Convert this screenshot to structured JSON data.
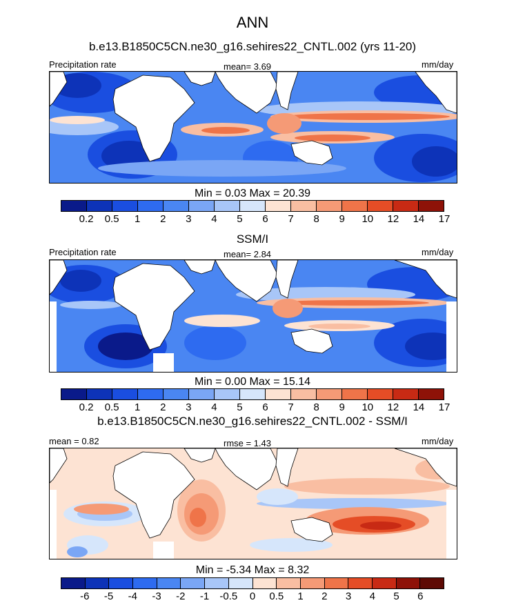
{
  "chart_data": [
    {
      "type": "heatmap",
      "title": "ANN",
      "subtitle": "b.e13.B1850C5CN.ne30_g16.sehires22_CNTL.002 (yrs 11-20)",
      "left_label": "Precipitation rate",
      "center_label": "mean=  3.69",
      "right_label": "mm/day",
      "stats": "Min =   0.03 Max =  20.39",
      "colorbar": {
        "ticks": [
          "0.2",
          "0.5",
          "1",
          "2",
          "3",
          "4",
          "5",
          "6",
          "7",
          "8",
          "9",
          "10",
          "12",
          "14",
          "17"
        ],
        "colors": [
          "#0a1a8a",
          "#0d33b8",
          "#1a4ee0",
          "#2e6bf0",
          "#4a86f2",
          "#7aa6f5",
          "#a8c6f8",
          "#d6e6fb",
          "#fde3d3",
          "#f9bea2",
          "#f59a76",
          "#ef7449",
          "#e54d26",
          "#c82a14",
          "#8e1208"
        ]
      }
    },
    {
      "type": "heatmap",
      "subtitle": "SSM/I",
      "left_label": "Precipitation rate",
      "center_label": "mean=  2.84",
      "right_label": "mm/day",
      "stats": "Min =   0.00 Max =  15.14",
      "colorbar": {
        "ticks": [
          "0.2",
          "0.5",
          "1",
          "2",
          "3",
          "4",
          "5",
          "6",
          "7",
          "8",
          "9",
          "10",
          "12",
          "14",
          "17"
        ],
        "colors": [
          "#0a1a8a",
          "#0d33b8",
          "#1a4ee0",
          "#2e6bf0",
          "#4a86f2",
          "#7aa6f5",
          "#a8c6f8",
          "#d6e6fb",
          "#fde3d3",
          "#f9bea2",
          "#f59a76",
          "#ef7449",
          "#e54d26",
          "#c82a14",
          "#8e1208"
        ]
      }
    },
    {
      "type": "heatmap",
      "subtitle": "b.e13.B1850C5CN.ne30_g16.sehires22_CNTL.002 - SSM/I",
      "left_label": "mean =   0.82",
      "center_label": "rmse =   1.43",
      "right_label": "mm/day",
      "stats": "Min =  -5.34 Max =   8.32",
      "colorbar": {
        "ticks": [
          "-6",
          "-5",
          "-4",
          "-3",
          "-2",
          "-1",
          "-0.5",
          "0",
          "0.5",
          "1",
          "2",
          "3",
          "4",
          "5",
          "6"
        ],
        "colors": [
          "#0a1a8a",
          "#0d33b8",
          "#1a4ee0",
          "#2e6bf0",
          "#4a86f2",
          "#7aa6f5",
          "#a8c6f8",
          "#d6e6fb",
          "#fde3d3",
          "#f9bea2",
          "#f59a76",
          "#ef7449",
          "#e54d26",
          "#c82a14",
          "#8e1208",
          "#5e0a04"
        ]
      }
    }
  ]
}
